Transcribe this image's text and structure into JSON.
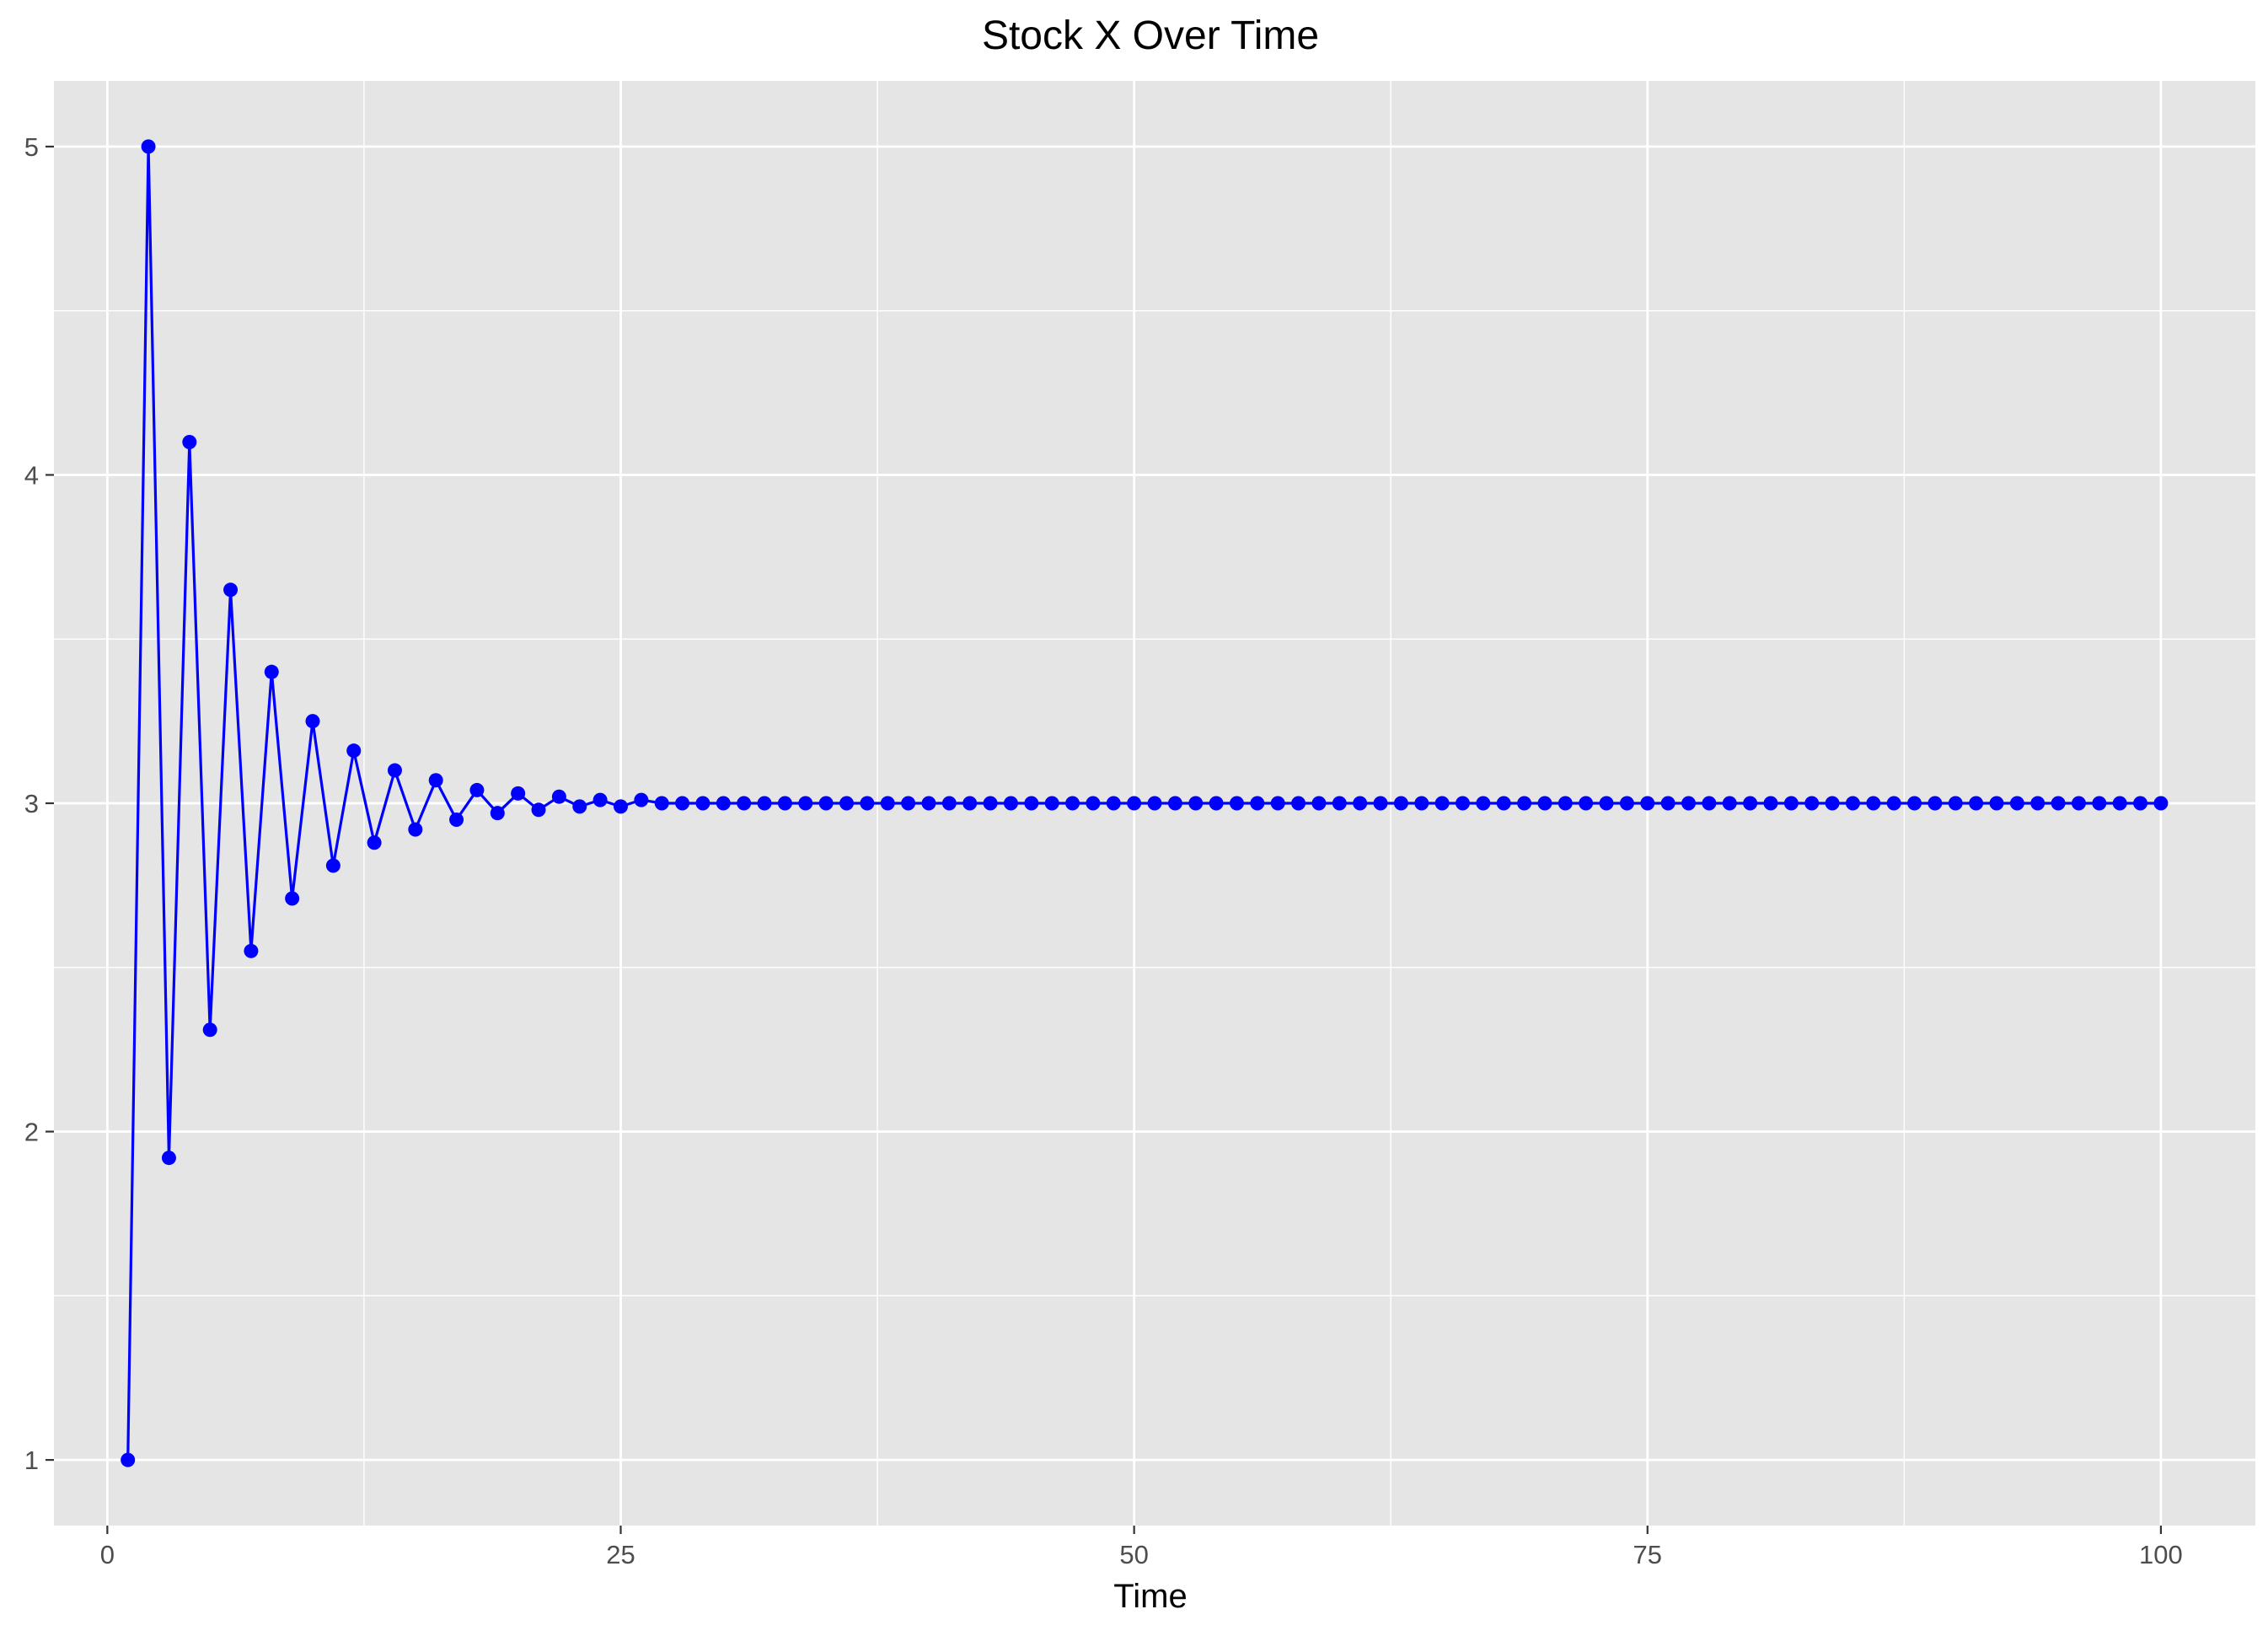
{
  "chart_data": {
    "type": "line",
    "title": "Stock X Over Time",
    "xlabel": "Time",
    "ylabel": "",
    "xlim": [
      -2.6,
      104.6
    ],
    "ylim": [
      0.8,
      5.2
    ],
    "xticks": [
      0,
      25,
      50,
      75,
      100
    ],
    "yticks": [
      1,
      2,
      3,
      4,
      5
    ],
    "xtick_labels": [
      "0",
      "25",
      "50",
      "75",
      "100"
    ],
    "ytick_labels": [
      "1",
      "2",
      "3",
      "4",
      "5"
    ],
    "grid": true,
    "panel_background": "#e5e5e5",
    "grid_color": "#ffffff",
    "series_color": "#0000ff",
    "series": [
      {
        "x": [
          1,
          2,
          3,
          4,
          5,
          6,
          7,
          8,
          9,
          10,
          11,
          12,
          13,
          14,
          15,
          16,
          17,
          18,
          19,
          20,
          21,
          22,
          23,
          24,
          25,
          26,
          27,
          28,
          29,
          30,
          31,
          32,
          33,
          34,
          35,
          36,
          37,
          38,
          39,
          40,
          41,
          42,
          43,
          44,
          45,
          46,
          47,
          48,
          49,
          50,
          51,
          52,
          53,
          54,
          55,
          56,
          57,
          58,
          59,
          60,
          61,
          62,
          63,
          64,
          65,
          66,
          67,
          68,
          69,
          70,
          71,
          72,
          73,
          74,
          75,
          76,
          77,
          78,
          79,
          80,
          81,
          82,
          83,
          84,
          85,
          86,
          87,
          88,
          89,
          90,
          91,
          92,
          93,
          94,
          95,
          96,
          97,
          98,
          99,
          100
        ],
        "y": [
          1.0,
          5.0,
          1.92,
          4.1,
          2.31,
          3.65,
          2.55,
          3.4,
          2.71,
          3.25,
          2.81,
          3.16,
          2.88,
          3.1,
          2.92,
          3.07,
          2.95,
          3.04,
          2.97,
          3.03,
          2.98,
          3.02,
          2.99,
          3.01,
          2.99,
          3.01,
          3.0,
          3.0,
          3.0,
          3.0,
          3.0,
          3.0,
          3.0,
          3.0,
          3.0,
          3.0,
          3.0,
          3.0,
          3.0,
          3.0,
          3.0,
          3.0,
          3.0,
          3.0,
          3.0,
          3.0,
          3.0,
          3.0,
          3.0,
          3.0,
          3.0,
          3.0,
          3.0,
          3.0,
          3.0,
          3.0,
          3.0,
          3.0,
          3.0,
          3.0,
          3.0,
          3.0,
          3.0,
          3.0,
          3.0,
          3.0,
          3.0,
          3.0,
          3.0,
          3.0,
          3.0,
          3.0,
          3.0,
          3.0,
          3.0,
          3.0,
          3.0,
          3.0,
          3.0,
          3.0,
          3.0,
          3.0,
          3.0,
          3.0,
          3.0,
          3.0,
          3.0,
          3.0,
          3.0,
          3.0,
          3.0,
          3.0,
          3.0,
          3.0,
          3.0,
          3.0,
          3.0,
          3.0,
          3.0,
          3.0
        ]
      }
    ]
  }
}
